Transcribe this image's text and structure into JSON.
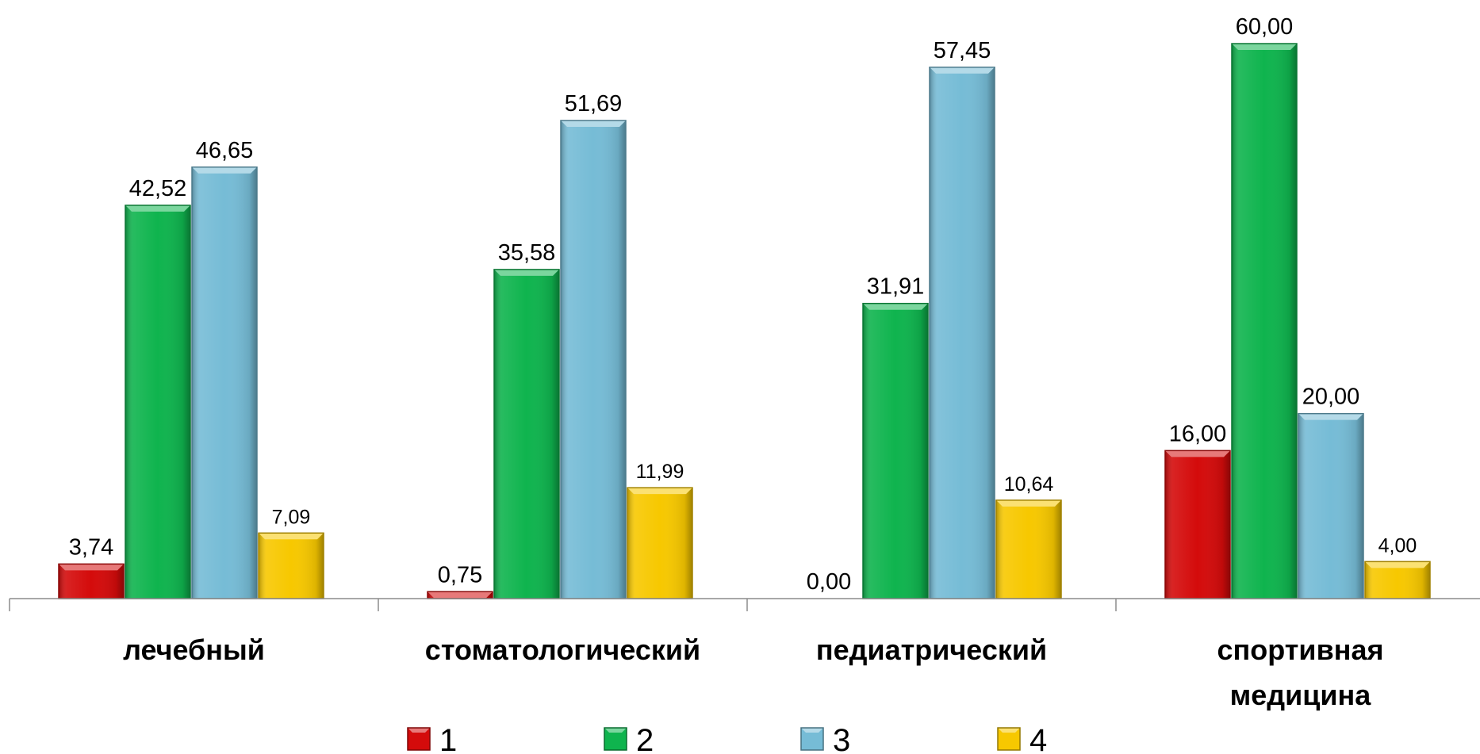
{
  "chart_data": {
    "type": "bar",
    "categories": [
      [
        "лечебный"
      ],
      [
        "стоматологический"
      ],
      [
        "педиатрический"
      ],
      [
        "спортивная",
        "медицина"
      ]
    ],
    "series": [
      {
        "name": "1",
        "color": "#d40b0b",
        "values": [
          3.74,
          0.75,
          0.0,
          16.0
        ],
        "labels": [
          "3,74",
          "0,75",
          "0,00",
          "16,00"
        ]
      },
      {
        "name": "2",
        "color": "#0fb44e",
        "values": [
          42.52,
          35.58,
          31.91,
          60.0
        ],
        "labels": [
          "42,52",
          "35,58",
          "31,91",
          "60,00"
        ]
      },
      {
        "name": "3",
        "color": "#76bcd6",
        "values": [
          46.65,
          51.69,
          57.45,
          20.0
        ],
        "labels": [
          "46,65",
          "51,69",
          "57,45",
          "20,00"
        ]
      },
      {
        "name": "4",
        "color": "#f7c800",
        "values": [
          7.09,
          11.99,
          10.64,
          4.0
        ],
        "labels": [
          "7,09",
          "11,99",
          "10,64",
          "4,00"
        ]
      }
    ],
    "ylim": [
      0,
      60
    ],
    "grid": false,
    "legend_position": "bottom"
  }
}
